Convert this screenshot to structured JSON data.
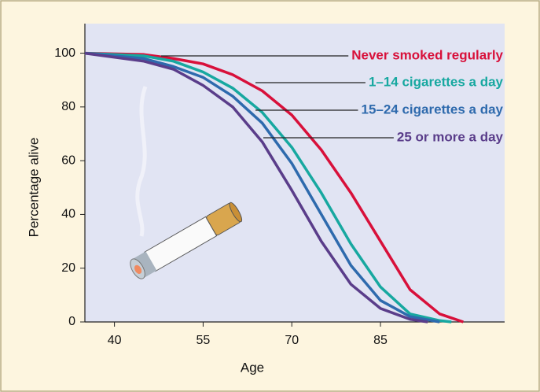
{
  "chart_data": {
    "type": "line",
    "x_label": "Age",
    "y_label": "Percentage alive",
    "xlim": [
      35,
      106
    ],
    "ylim": [
      0,
      111
    ],
    "xticks": [
      40,
      55,
      70,
      85
    ],
    "yticks": [
      0,
      20,
      40,
      60,
      80,
      100
    ],
    "series": [
      {
        "name": "Never smoked regularly",
        "color": "#d8103a",
        "x": [
          35,
          45,
          50,
          55,
          60,
          65,
          70,
          75,
          80,
          85,
          90,
          95,
          99
        ],
        "values": [
          100,
          99.5,
          98,
          96,
          92,
          86,
          77,
          64,
          48,
          30,
          12,
          3,
          0
        ]
      },
      {
        "name": "1–14 cigarettes a day",
        "color": "#17a8a0",
        "x": [
          35,
          45,
          50,
          55,
          60,
          65,
          70,
          75,
          80,
          85,
          90,
          95,
          97
        ],
        "values": [
          100,
          99,
          97,
          93,
          87,
          78,
          65,
          48,
          29,
          13,
          3,
          0.5,
          0
        ]
      },
      {
        "name": "15–24 cigarettes a day",
        "color": "#2e6aad",
        "x": [
          35,
          45,
          50,
          55,
          60,
          65,
          70,
          75,
          80,
          85,
          90,
          95
        ],
        "values": [
          100,
          98,
          95,
          91,
          84,
          74,
          59,
          40,
          21,
          8,
          2,
          0
        ]
      },
      {
        "name": "25 or more a day",
        "color": "#5a3d8a",
        "x": [
          35,
          45,
          50,
          55,
          60,
          65,
          70,
          75,
          80,
          85,
          90,
          93
        ],
        "values": [
          100,
          97,
          94,
          88,
          80,
          67,
          49,
          30,
          14,
          5,
          1,
          0
        ]
      }
    ]
  }
}
